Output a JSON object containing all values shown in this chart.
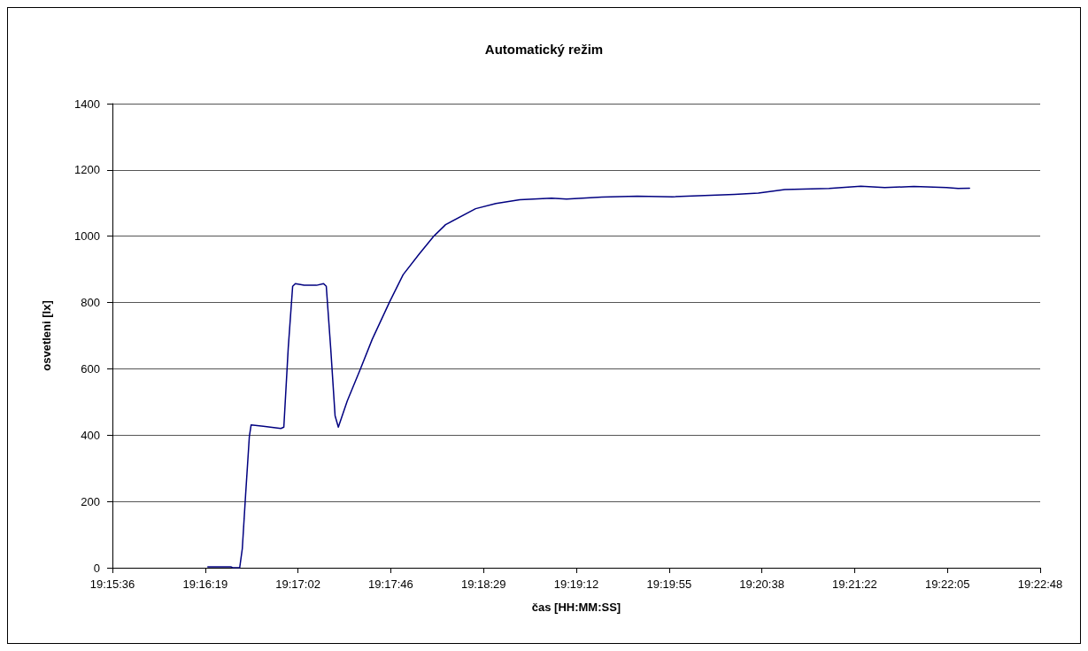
{
  "chart_data": {
    "type": "line",
    "title": "Automatický režim",
    "xlabel": "čas [HH:MM:SS]",
    "ylabel": "osvetleni [lx]",
    "xlim": [
      19.26,
      19.38
    ],
    "xticks": [
      {
        "value": 19.26,
        "label": "19:15:36"
      },
      {
        "value": 19.272,
        "label": "19:16:19"
      },
      {
        "value": 19.284,
        "label": "19:17:02"
      },
      {
        "value": 19.296,
        "label": "19:17:46"
      },
      {
        "value": 19.308,
        "label": "19:18:29"
      },
      {
        "value": 19.32,
        "label": "19:19:12"
      },
      {
        "value": 19.332,
        "label": "19:19:55"
      },
      {
        "value": 19.344,
        "label": "19:20:38"
      },
      {
        "value": 19.356,
        "label": "19:21:22"
      },
      {
        "value": 19.368,
        "label": "19:22:05"
      },
      {
        "value": 19.38,
        "label": "19:22:48"
      }
    ],
    "ylim": [
      0,
      1400
    ],
    "yticks": [
      0,
      200,
      400,
      600,
      800,
      1000,
      1200,
      1400
    ],
    "grid": "y",
    "marker": "none",
    "line_style": "solid",
    "series": [
      {
        "color": "#000080",
        "x": [
          19.27234,
          19.27531,
          19.27554,
          19.27646,
          19.2768,
          19.27722,
          19.27771,
          19.27794,
          19.27951,
          19.28179,
          19.28217,
          19.28274,
          19.28331,
          19.28366,
          19.2848,
          19.2864,
          19.28731,
          19.28766,
          19.28823,
          19.2888,
          19.28922,
          19.29037,
          19.29208,
          19.2936,
          19.29589,
          19.2976,
          19.29966,
          19.3016,
          19.30309,
          19.30697,
          19.3096,
          19.31269,
          19.3168,
          19.31874,
          19.32331,
          19.32789,
          19.33246,
          19.34046,
          19.34354,
          19.34697,
          19.35269,
          19.3568,
          19.35989,
          19.36366,
          19.36789,
          19.36937,
          19.37086
        ],
        "values": [
          3,
          3,
          0,
          0,
          58,
          218,
          396,
          431,
          427,
          420,
          424,
          663,
          849,
          857,
          852,
          852,
          857,
          849,
          663,
          458,
          424,
          503,
          600,
          689,
          804,
          884,
          946,
          1001,
          1035,
          1083,
          1099,
          1110,
          1115,
          1112,
          1118,
          1121,
          1119,
          1126,
          1130,
          1141,
          1144,
          1151,
          1147,
          1150,
          1147,
          1144,
          1145
        ]
      }
    ]
  }
}
